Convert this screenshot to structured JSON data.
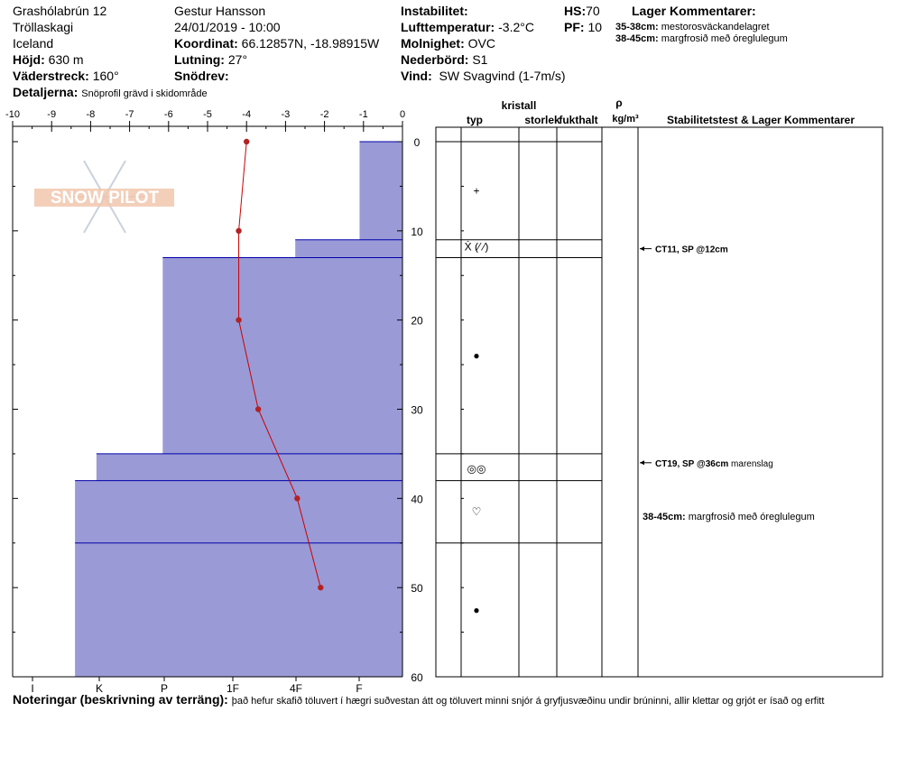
{
  "header": {
    "location": "Grashólabrún 12",
    "region": "Tröllaskagi",
    "country": "Iceland",
    "elevation_label": "Höjd:",
    "elevation": "630 m",
    "aspect_label": "Väderstreck:",
    "aspect": "160°",
    "details_label": "Detaljerna:",
    "details": "Snöprofil grävd i skidområde",
    "observer": "Gestur Hansson",
    "datetime": "24/01/2019 - 10:00",
    "coord_label": "Koordinat:",
    "coord": "66.12857N, -18.98915W",
    "slope_label": "Lutning:",
    "slope": "27°",
    "snowdrift_label": "Snödrev:",
    "snowdrift": "",
    "instability_label": "Instabilitet:",
    "instability": "",
    "airtemp_label": "Lufttemperatur:",
    "airtemp": "-3.2°C",
    "clouds_label": "Molnighet:",
    "clouds": "OVC",
    "precip_label": "Nederbörd:",
    "precip": "S1",
    "wind_label": "Vind:",
    "wind": "SW Svagvind (1-7m/s)",
    "hs_label": "HS:",
    "hs": "70",
    "pf_label": "PF:",
    "pf": "10",
    "layer_comments_title": "Lager Kommentarer:",
    "layer_comments": [
      {
        "range": "35-38cm:",
        "text": "mestorosväckandelagret"
      },
      {
        "range": "38-45cm:",
        "text": "margfrosið með óreglulegum"
      }
    ]
  },
  "table": {
    "crystal_header": "kristall",
    "type_header": "typ",
    "size_header": "storlek",
    "moisture_header": "fukthalt",
    "rho_header": "ρ",
    "density_unit": "kg/m³",
    "stability_header": "Stabilitetstest & Lager Kommentarer",
    "layer_lines": [
      0,
      11,
      13,
      35,
      38,
      45
    ],
    "grain_symbols": [
      {
        "depth": 5.5,
        "symbol": "+"
      },
      {
        "depth": 11.8,
        "symbol": "Ẋ (⁄ ⁄)"
      },
      {
        "depth": 24,
        "symbol": "●"
      },
      {
        "depth": 36.7,
        "symbol": "◎◎"
      },
      {
        "depth": 41.5,
        "symbol": "♡"
      },
      {
        "depth": 52.5,
        "symbol": "●"
      }
    ],
    "stability_tests": [
      {
        "depth": 12,
        "label": "CT11, SP @12cm",
        "extra": ""
      },
      {
        "depth": 36,
        "label": "CT19, SP @36cm",
        "extra": "marenslag"
      }
    ],
    "layer_comment_rows": [
      {
        "depth": 42,
        "range": "38-45cm:",
        "text": "margfrosið með óreglulegum"
      }
    ]
  },
  "chart_data": {
    "type": "area",
    "temperature_axis": {
      "ticks": [
        -10,
        -9,
        -8,
        -7,
        -6,
        -5,
        -4,
        -3,
        -2,
        -1,
        0
      ],
      "range": [
        -10,
        0
      ]
    },
    "depth_axis": {
      "ticks": [
        0,
        10,
        20,
        30,
        40,
        50,
        60
      ],
      "range": [
        0,
        60
      ]
    },
    "hardness_axis": {
      "labels": [
        "I",
        "K",
        "P",
        "1F",
        "4F",
        "F"
      ]
    },
    "hardness_layers": [
      {
        "top": 0,
        "bottom": 11,
        "temp_equiv": -1.1
      },
      {
        "top": 11,
        "bottom": 13,
        "temp_equiv": -2.75
      },
      {
        "top": 13,
        "bottom": 35,
        "temp_equiv": -6.15
      },
      {
        "top": 35,
        "bottom": 38,
        "temp_equiv": -7.85
      },
      {
        "top": 38,
        "bottom": 45,
        "temp_equiv": -8.4
      },
      {
        "top": 45,
        "bottom": 60,
        "temp_equiv": -8.4
      }
    ],
    "temperature_profile": {
      "depth": [
        0,
        10,
        20,
        30,
        40,
        50
      ],
      "temp": [
        -4.0,
        -4.2,
        -4.2,
        -3.7,
        -2.7,
        -2.1
      ]
    },
    "colors": {
      "hardness_fill": "#9a9ad6",
      "layer_line": "#0000aa",
      "temp_line": "#cc0000",
      "temp_point": "#b22222"
    }
  },
  "watermark": {
    "text": "SNOW PILOT"
  },
  "notes": {
    "label": "Noteringar (beskrivning av terräng):",
    "text": "það hefur skafið töluvert í hægri suðvestan átt og töluvert minni snjór á gryfjusvæðinu undir brúninni, allir klettar og grjót er ísað og erfitt"
  }
}
